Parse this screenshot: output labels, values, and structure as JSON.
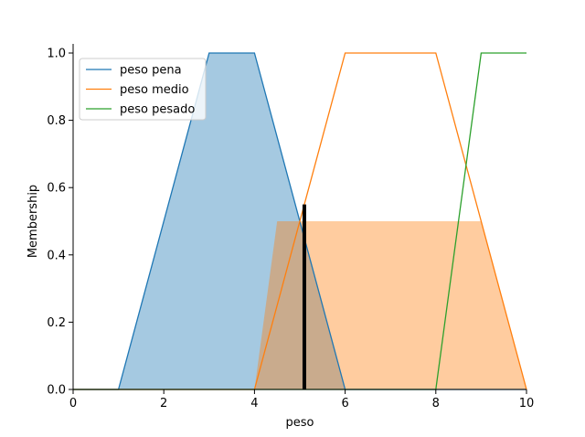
{
  "chart_data": {
    "type": "line",
    "xlabel": "peso",
    "ylabel": "Membership",
    "xlim": [
      0,
      10
    ],
    "ylim": [
      0,
      1.0
    ],
    "x_ticks": [
      "0",
      "2",
      "4",
      "6",
      "8",
      "10"
    ],
    "y_ticks": [
      "0.0",
      "0.2",
      "0.4",
      "0.6",
      "0.8",
      "1.0"
    ],
    "grid": false,
    "legend_position": "top-left",
    "series": [
      {
        "name": "peso pena",
        "color": "#1f77b4",
        "x": [
          0,
          1,
          3,
          4,
          6,
          10
        ],
        "y": [
          0,
          0,
          1,
          1,
          0,
          0
        ]
      },
      {
        "name": "peso medio",
        "color": "#ff7f0e",
        "x": [
          0,
          4,
          6,
          8,
          10
        ],
        "y": [
          0,
          0,
          1,
          1,
          0
        ]
      },
      {
        "name": "peso pesado",
        "color": "#2ca02c",
        "x": [
          0,
          8,
          9,
          10
        ],
        "y": [
          0,
          0,
          1,
          1
        ]
      }
    ],
    "filled_regions": [
      {
        "color": "#1f77b4",
        "x": [
          0,
          1,
          3,
          4,
          6,
          10
        ],
        "y": [
          0,
          0,
          1,
          1,
          0,
          0
        ]
      },
      {
        "color": "#ff7f0e",
        "x": [
          0,
          4,
          4.5,
          9,
          10
        ],
        "y": [
          0,
          0,
          0.5,
          0.5,
          0
        ]
      }
    ],
    "crisp_value": {
      "x": 5.1,
      "y": 0.55,
      "color": "#000000"
    }
  }
}
